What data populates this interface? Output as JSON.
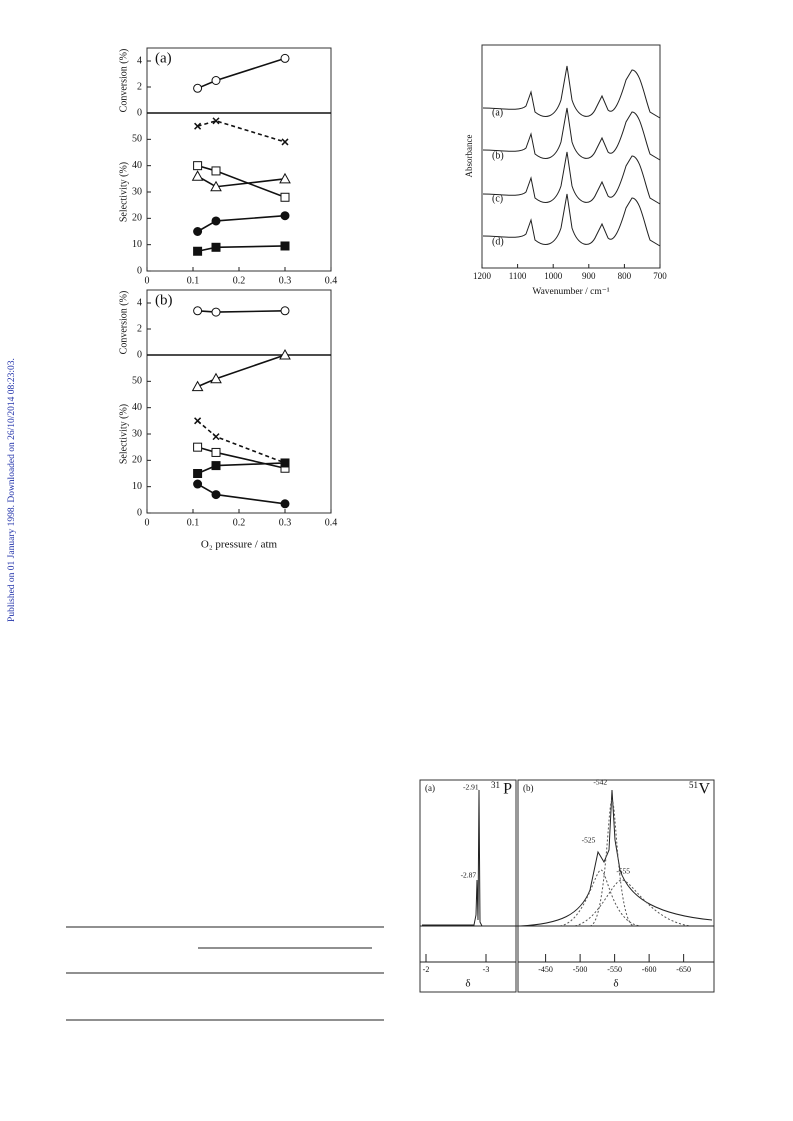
{
  "sidebar": "Published on 01 January 1998. Downloaded on 26/10/2014 08:23:03.",
  "figure_selectivity": {
    "xlabel": "O₂ pressure / atm",
    "xlim": [
      0,
      0.4
    ],
    "xticks": [
      0,
      0.1,
      0.2,
      0.3,
      0.4
    ],
    "panels": [
      {
        "label": "(a)",
        "conversion": {
          "ylabel": "Conversion (%)",
          "ylim": [
            0,
            5
          ],
          "yticks": [
            0,
            2,
            4
          ],
          "series": [
            {
              "marker": "open-circle",
              "x": [
                0.11,
                0.15,
                0.3
              ],
              "values": [
                1.9,
                2.5,
                4.2
              ]
            }
          ]
        },
        "selectivity": {
          "ylabel": "Selectivity (%)",
          "ylim": [
            0,
            60
          ],
          "yticks": [
            0,
            10,
            20,
            30,
            40,
            50
          ],
          "series": [
            {
              "marker": "cross",
              "dashed": true,
              "x": [
                0.11,
                0.15,
                0.3
              ],
              "values": [
                55,
                57,
                49
              ]
            },
            {
              "marker": "open-square",
              "x": [
                0.11,
                0.15,
                0.3
              ],
              "values": [
                40,
                38,
                28
              ]
            },
            {
              "marker": "open-triangle",
              "x": [
                0.11,
                0.15,
                0.3
              ],
              "values": [
                36,
                32,
                35
              ]
            },
            {
              "marker": "filled-circle",
              "x": [
                0.11,
                0.15,
                0.3
              ],
              "values": [
                15,
                19,
                21
              ]
            },
            {
              "marker": "filled-square",
              "x": [
                0.11,
                0.15,
                0.3
              ],
              "values": [
                7.5,
                9,
                9.5
              ]
            }
          ]
        }
      },
      {
        "label": "(b)",
        "conversion": {
          "ylabel": "Conversion (%)",
          "ylim": [
            0,
            5
          ],
          "yticks": [
            0,
            2,
            4
          ],
          "series": [
            {
              "marker": "open-circle",
              "x": [
                0.11,
                0.15,
                0.3
              ],
              "values": [
                3.4,
                3.3,
                3.4
              ]
            }
          ]
        },
        "selectivity": {
          "ylabel": "Selectivity (%)",
          "ylim": [
            0,
            60
          ],
          "yticks": [
            0,
            10,
            20,
            30,
            40,
            50
          ],
          "series": [
            {
              "marker": "open-triangle",
              "x": [
                0.11,
                0.15,
                0.3
              ],
              "values": [
                48,
                51,
                60
              ]
            },
            {
              "marker": "cross",
              "dashed": true,
              "x": [
                0.11,
                0.15,
                0.3
              ],
              "values": [
                35,
                29,
                19
              ]
            },
            {
              "marker": "open-square",
              "x": [
                0.11,
                0.15,
                0.3
              ],
              "values": [
                25,
                23,
                17
              ]
            },
            {
              "marker": "filled-square",
              "x": [
                0.11,
                0.15,
                0.3
              ],
              "values": [
                15,
                18,
                19
              ]
            },
            {
              "marker": "filled-circle",
              "x": [
                0.11,
                0.15,
                0.3
              ],
              "values": [
                11,
                7,
                3.5
              ]
            }
          ]
        }
      }
    ]
  },
  "figure_ir": {
    "ylabel": "Absorbance",
    "xlabel": "Wavenumber / cm⁻¹",
    "xlim": [
      1200,
      700
    ],
    "xticks": [
      1200,
      1100,
      1000,
      900,
      800,
      700
    ],
    "spectra": [
      "(a)",
      "(b)",
      "(c)",
      "(d)"
    ]
  },
  "figure_nmr": {
    "panels": [
      {
        "label": "(a)",
        "nucleus_mass": "31",
        "nucleus": "P",
        "xlabel": "δ",
        "xlim": [
          -1.9,
          -3.5
        ],
        "xticks": [
          -2,
          -3
        ],
        "peaks": [
          -2.91,
          -2.87
        ]
      },
      {
        "label": "(b)",
        "nucleus_mass": "51",
        "nucleus": "V",
        "xlabel": "δ",
        "xlim": [
          -410,
          -694
        ],
        "xticks": [
          -450,
          -500,
          -550,
          -600,
          -650
        ],
        "peaks": [
          -542,
          -525,
          -555
        ]
      }
    ]
  }
}
